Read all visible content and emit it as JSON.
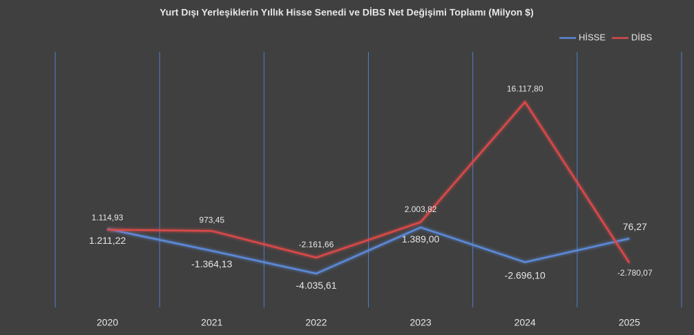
{
  "chart_data": {
    "type": "line",
    "title": "Yurt Dışı Yerleşiklerin Yıllık Hisse Senedi ve DİBS Net Değişimi Toplamı (Milyon $)",
    "categories": [
      "2020",
      "2021",
      "2022",
      "2023",
      "2024",
      "2025"
    ],
    "series": [
      {
        "name": "HİSSE",
        "color": "#5b8ad8",
        "values": [
          1211.22,
          -1364.13,
          -4035.61,
          1389.0,
          -2696.1,
          76.27
        ],
        "value_labels": [
          "1.211,22",
          "-1.364,13",
          "-4.035,61",
          "1.389,00",
          "-2.696,10",
          "76,27"
        ]
      },
      {
        "name": "DİBS",
        "color": "#dc4a4a",
        "values": [
          1114.93,
          973.45,
          -2161.66,
          2003.82,
          16117.8,
          -2780.07
        ],
        "value_labels": [
          "1.114,93",
          "973,45",
          "-2.161,66",
          "2.003,82",
          "16.117,80",
          "-2.780,07"
        ]
      }
    ],
    "ylim": [
      -8000,
      22000
    ],
    "grid": true,
    "legend": "top-right"
  }
}
